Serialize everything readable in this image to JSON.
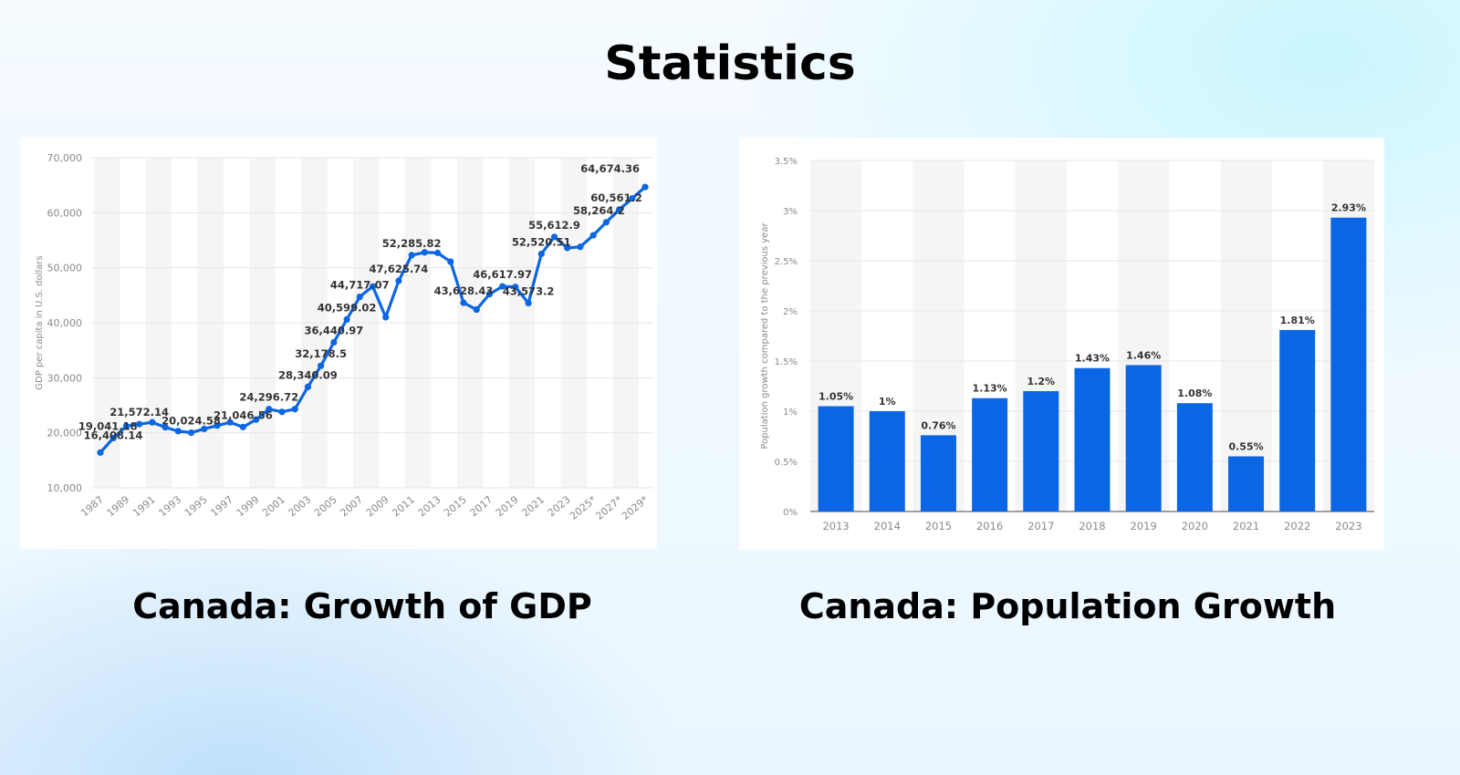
{
  "header": {
    "title": "Statistics"
  },
  "colors": {
    "series": "#0b66e4",
    "stripe": "#f5f5f5",
    "grid": "#e6e6e6"
  },
  "charts": [
    {
      "caption": "Canada: Growth of GDP",
      "chart_data": {
        "type": "line",
        "title": "",
        "xlabel": "",
        "ylabel": "GDP per capita in U.S. dollars",
        "ylim": [
          10000,
          70000
        ],
        "yticks": [
          "70,000",
          "60,000",
          "50,000",
          "40,000",
          "30,000",
          "20,000",
          "10,000"
        ],
        "xticks": [
          "1987",
          "1989",
          "1991",
          "1993",
          "1995",
          "1997",
          "1999",
          "2001",
          "2003",
          "2005",
          "2007",
          "2009",
          "2011",
          "2013",
          "2015",
          "2017",
          "2019",
          "2021",
          "2023",
          "2025*",
          "2027*",
          "2029*"
        ],
        "x": [
          "1987",
          "1988",
          "1989",
          "1990",
          "1991",
          "1992",
          "1993",
          "1994",
          "1995",
          "1996",
          "1997",
          "1998",
          "1999",
          "2000",
          "2001",
          "2002",
          "2003",
          "2004",
          "2005",
          "2006",
          "2007",
          "2008",
          "2009",
          "2010",
          "2011",
          "2012",
          "2013",
          "2014",
          "2015",
          "2016",
          "2017",
          "2018",
          "2019",
          "2020",
          "2021",
          "2022",
          "2023",
          "2024*",
          "2025*",
          "2026*",
          "2027*",
          "2028*",
          "2029*"
        ],
        "values": [
          16408.14,
          19041.18,
          21200,
          21572.14,
          21900,
          21000,
          20300,
          20024.58,
          20700,
          21300,
          21900,
          21046.56,
          22400,
          24296.72,
          23800,
          24300,
          28340.09,
          32178.5,
          36440.97,
          40599.02,
          44717.07,
          46600,
          41000,
          47625.74,
          52285.82,
          52800,
          52700,
          51100,
          43628.43,
          42400,
          45200,
          46617.97,
          46500,
          43573.2,
          52520.51,
          55612.9,
          53600,
          53800,
          55900,
          58264.2,
          60561.2,
          62600,
          64674.36
        ],
        "labels": [
          {
            "x": "1987",
            "text": "16,408.14"
          },
          {
            "x": "1988",
            "text": "19,041.18"
          },
          {
            "x": "1990",
            "text": "21,572.14"
          },
          {
            "x": "1994",
            "text": "20,024.58"
          },
          {
            "x": "1998",
            "text": "21,046.56"
          },
          {
            "x": "2000",
            "text": "24,296.72"
          },
          {
            "x": "2003",
            "text": "28,340.09"
          },
          {
            "x": "2004",
            "text": "32,178.5"
          },
          {
            "x": "2005",
            "text": "36,440.97"
          },
          {
            "x": "2006",
            "text": "40,599.02"
          },
          {
            "x": "2007",
            "text": "44,717.07"
          },
          {
            "x": "2010",
            "text": "47,625.74"
          },
          {
            "x": "2011",
            "text": "52,285.82"
          },
          {
            "x": "2015",
            "text": "43,628.43"
          },
          {
            "x": "2018",
            "text": "46,617.97"
          },
          {
            "x": "2020",
            "text": "43,573.2"
          },
          {
            "x": "2021",
            "text": "52,520.51"
          },
          {
            "x": "2022",
            "text": "55,612.9"
          },
          {
            "x": "2026*",
            "text": "58,264.2"
          },
          {
            "x": "2027*",
            "text": "60,561.2"
          },
          {
            "x": "2029*",
            "text": "64,674.36"
          }
        ]
      }
    },
    {
      "caption": "Canada: Population Growth",
      "chart_data": {
        "type": "bar",
        "title": "",
        "xlabel": "",
        "ylabel": "Population growth compared to the previous year",
        "ylim": [
          0,
          3.5
        ],
        "yticks": [
          "3.5%",
          "3%",
          "2.5%",
          "2%",
          "1.5%",
          "1%",
          "0.5%",
          "0%"
        ],
        "categories": [
          "2013",
          "2014",
          "2015",
          "2016",
          "2017",
          "2018",
          "2019",
          "2020",
          "2021",
          "2022",
          "2023"
        ],
        "values": [
          1.05,
          1.0,
          0.76,
          1.13,
          1.2,
          1.43,
          1.46,
          1.08,
          0.55,
          1.81,
          2.93
        ],
        "value_labels": [
          "1.05%",
          "1%",
          "0.76%",
          "1.13%",
          "1.2%",
          "1.43%",
          "1.46%",
          "1.08%",
          "0.55%",
          "1.81%",
          "2.93%"
        ]
      }
    }
  ]
}
